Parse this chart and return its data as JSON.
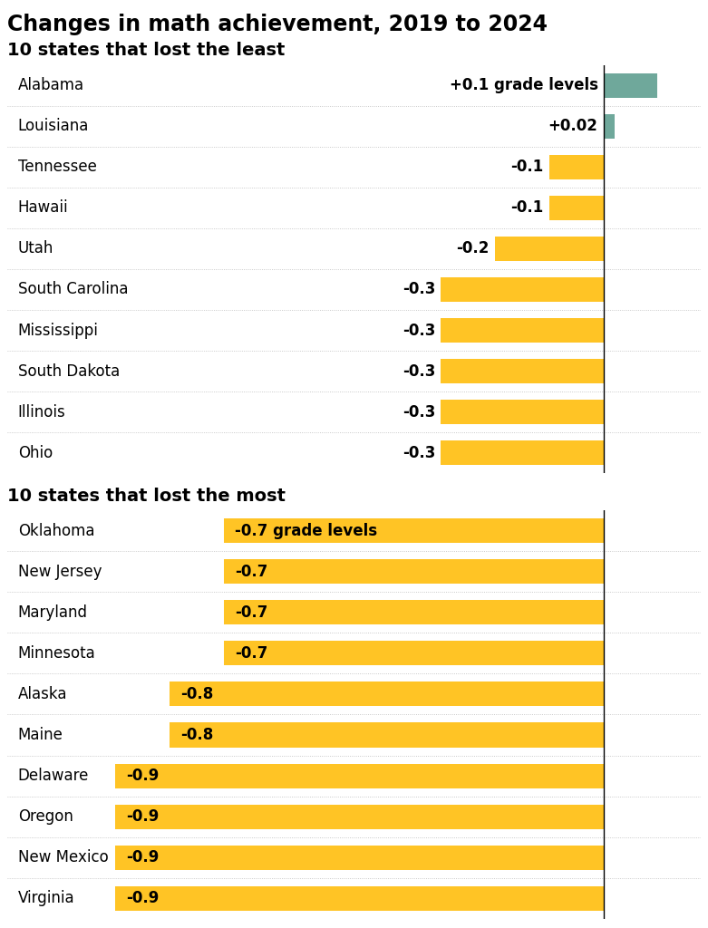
{
  "title": "Changes in math achievement, 2019 to 2024",
  "section1_title": "10 states that lost the least",
  "section2_title": "10 states that lost the most",
  "top10_states": [
    "Alabama",
    "Louisiana",
    "Tennessee",
    "Hawaii",
    "Utah",
    "South Carolina",
    "Mississippi",
    "South Dakota",
    "Illinois",
    "Ohio"
  ],
  "top10_values": [
    0.1,
    0.02,
    -0.1,
    -0.1,
    -0.2,
    -0.3,
    -0.3,
    -0.3,
    -0.3,
    -0.3
  ],
  "top10_labels": [
    "+0.1",
    "+0.02",
    "-0.1",
    "-0.1",
    "-0.2",
    "-0.3",
    "-0.3",
    "-0.3",
    "-0.3",
    "-0.3"
  ],
  "bottom10_states": [
    "Oklahoma",
    "New Jersey",
    "Maryland",
    "Minnesota",
    "Alaska",
    "Maine",
    "Delaware",
    "Oregon",
    "New Mexico",
    "Virginia"
  ],
  "bottom10_values": [
    -0.7,
    -0.7,
    -0.7,
    -0.7,
    -0.8,
    -0.8,
    -0.9,
    -0.9,
    -0.9,
    -0.9
  ],
  "bottom10_labels": [
    "-0.7",
    "-0.7",
    "-0.7",
    "-0.7",
    "-0.8",
    "-0.8",
    "-0.9",
    "-0.9",
    "-0.9",
    "-0.9"
  ],
  "positive_color": "#6fa89b",
  "negative_color": "#ffc425",
  "background_color": "#ffffff",
  "title_fontsize": 17,
  "section_fontsize": 14,
  "label_fontsize": 12,
  "state_fontsize": 12
}
